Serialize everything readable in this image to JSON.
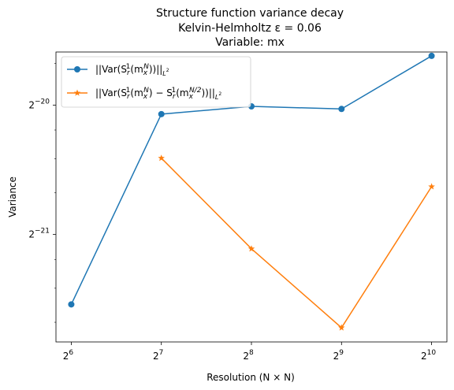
{
  "chart_data": {
    "type": "line",
    "title_lines": [
      "Structure function variance decay",
      "Kelvin-Helmholtz ε = 0.06",
      "Variable: mx"
    ],
    "xlabel": "Resolution (N × N)",
    "ylabel": "Variance",
    "xscale": "log2",
    "yscale": "log2",
    "x_exponents": [
      6,
      7,
      8,
      9,
      10
    ],
    "x_tick_labels": [
      {
        "base": "2",
        "exp": "6"
      },
      {
        "base": "2",
        "exp": "7"
      },
      {
        "base": "2",
        "exp": "8"
      },
      {
        "base": "2",
        "exp": "9"
      },
      {
        "base": "2",
        "exp": "10"
      }
    ],
    "y_tick_labels": [
      {
        "base": "2",
        "exp": "−20",
        "log2": -20
      },
      {
        "base": "2",
        "exp": "−21",
        "log2": -21
      }
    ],
    "xlim_log2": [
      5.83,
      10.17
    ],
    "ylim_log2": [
      -21.83,
      -19.59
    ],
    "legend_position": "upper-left",
    "series": [
      {
        "name": "||Var(S_r^1(m_x^N))||_{L^2}",
        "legend": {
          "a": "||Var(S",
          "b": "r",
          "c": "1",
          "d": "(m",
          "e": "x",
          "f": "N",
          "g": "))||",
          "h": "L",
          "i": "2"
        },
        "color": "#1f77b4",
        "marker": "circle",
        "x_log2": [
          6,
          7,
          8,
          9,
          10
        ],
        "y_log2": [
          -21.54,
          -20.07,
          -20.01,
          -20.03,
          -19.62
        ]
      },
      {
        "name": "||Var(S_r^1(m_x^N) − S_r^1(m_x^{N/2}))||_{L^2}",
        "legend": {
          "a": "||Var(S",
          "b": "r",
          "c": "1",
          "d": "(m",
          "e": "x",
          "f": "N",
          "g": ") − S",
          "h": "r",
          "i": "1",
          "j": "(m",
          "k": "x",
          "l": "N/2",
          "m": "))||",
          "n": "L",
          "o": "2"
        },
        "color": "#ff7f0e",
        "marker": "star",
        "x_log2": [
          7,
          8,
          9,
          10
        ],
        "y_log2": [
          -20.41,
          -21.11,
          -21.72,
          -20.63
        ]
      }
    ]
  }
}
